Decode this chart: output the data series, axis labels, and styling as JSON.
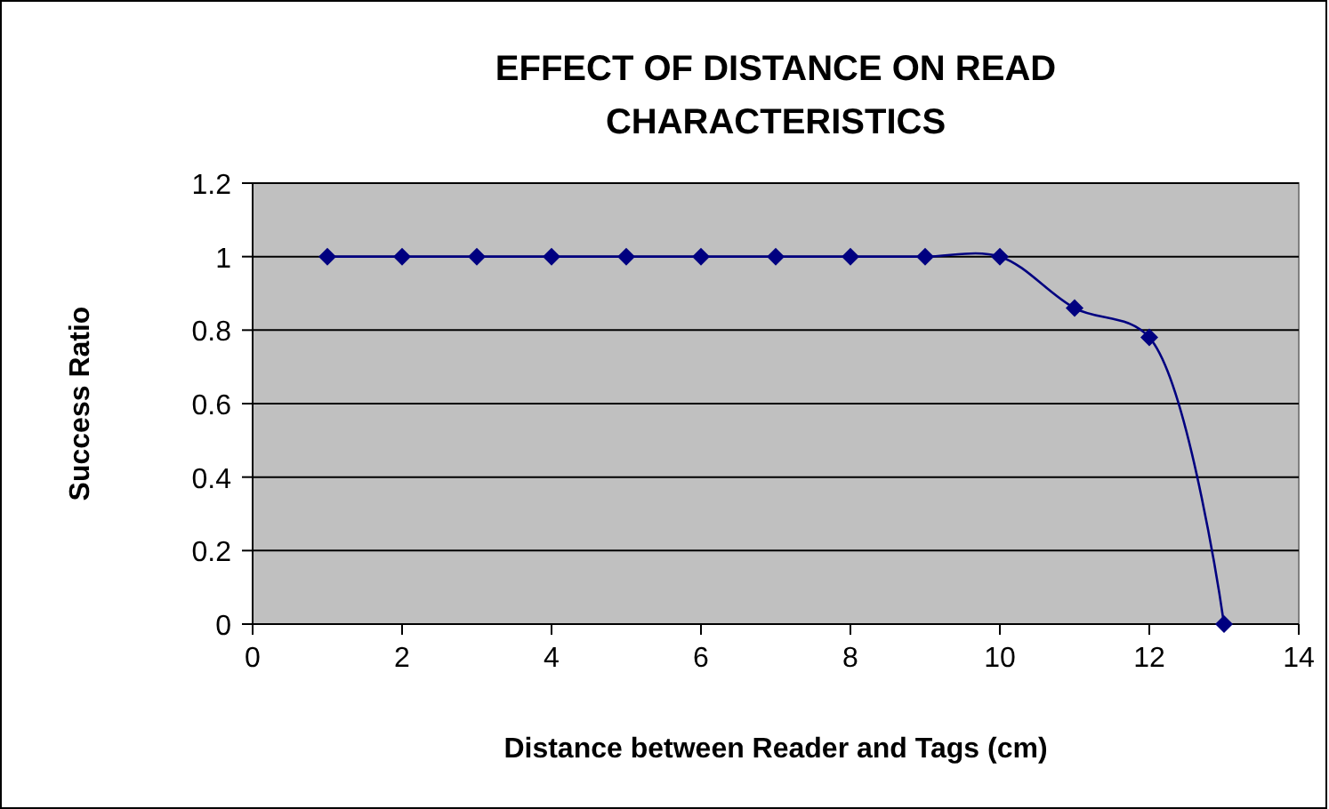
{
  "chart_data": {
    "type": "line",
    "title": "EFFECT OF DISTANCE ON READ CHARACTERISTICS",
    "xlabel": "Distance between Reader and Tags (cm)",
    "ylabel": "Success Ratio",
    "x": [
      1,
      2,
      3,
      4,
      5,
      6,
      7,
      8,
      9,
      10,
      11,
      12,
      13
    ],
    "series": [
      {
        "color": "#000080",
        "values": [
          1,
          1,
          1,
          1,
          1,
          1,
          1,
          1,
          1,
          1,
          0.86,
          0.78,
          0
        ]
      }
    ],
    "xlim": [
      0,
      14
    ],
    "xticks": [
      0,
      2,
      4,
      6,
      8,
      10,
      12,
      14
    ],
    "ylim": [
      0,
      1.2
    ],
    "yticks": [
      0,
      0.2,
      0.4,
      0.6,
      0.8,
      1,
      1.2
    ],
    "grid": "y",
    "marker": "diamond"
  }
}
